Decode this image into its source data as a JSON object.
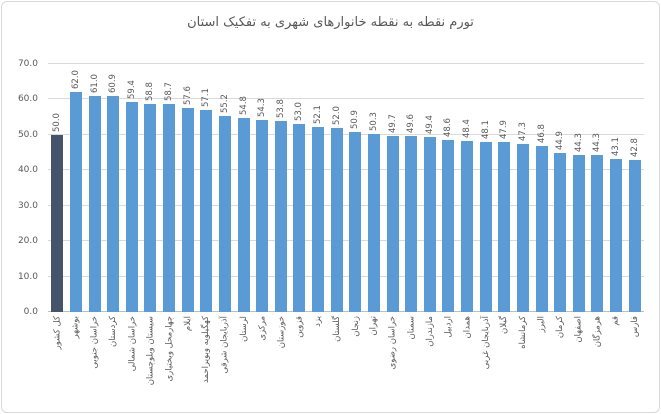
{
  "chart_data": {
    "type": "bar",
    "title": "تورم نقطه به نقطه خانوارهای شهری به تفکیک استان",
    "xlabel": "",
    "ylabel": "",
    "categories": [
      "کل کشور",
      "بوشهر",
      "خراسان جنوبی",
      "کردستان",
      "خراسان شمالی",
      "سیستان وبلوچستان",
      "چهارمحل وبختیاری",
      "ایلام",
      "کهگیلویه وبویراحمد",
      "آذربایجان شرقی",
      "لرستان",
      "مرکزی",
      "خوزستان",
      "قزوین",
      "یزد",
      "گلستان",
      "زنجان",
      "تهران",
      "خراسان رضوی",
      "سمنان",
      "مازندران",
      "اردبیل",
      "همدان",
      "آذربایجان غربی",
      "گیلان",
      "کرمانشاه",
      "البرز",
      "کرمان",
      "اصفهان",
      "هرمزگان",
      "قم",
      "فارس"
    ],
    "values": [
      50.0,
      62.0,
      61.0,
      60.9,
      59.4,
      58.8,
      58.7,
      57.6,
      57.1,
      55.2,
      54.8,
      54.3,
      53.8,
      53.0,
      52.1,
      52.0,
      50.9,
      50.3,
      49.7,
      49.6,
      49.4,
      48.6,
      48.4,
      48.1,
      47.9,
      47.3,
      46.8,
      44.9,
      44.3,
      44.3,
      43.1,
      42.8
    ],
    "ylim": [
      0,
      70
    ],
    "ytick_step": 10,
    "ytick_labels": [
      "0.0",
      "10.0",
      "20.0",
      "30.0",
      "40.0",
      "50.0",
      "60.0",
      "70.0"
    ],
    "grid": true,
    "legend_position": "none",
    "bar_color": "#5B9BD5",
    "highlight_index": 0,
    "highlight_color": "#44546A",
    "text_color": "#595959",
    "gridline_color": "#d9d9d9"
  }
}
